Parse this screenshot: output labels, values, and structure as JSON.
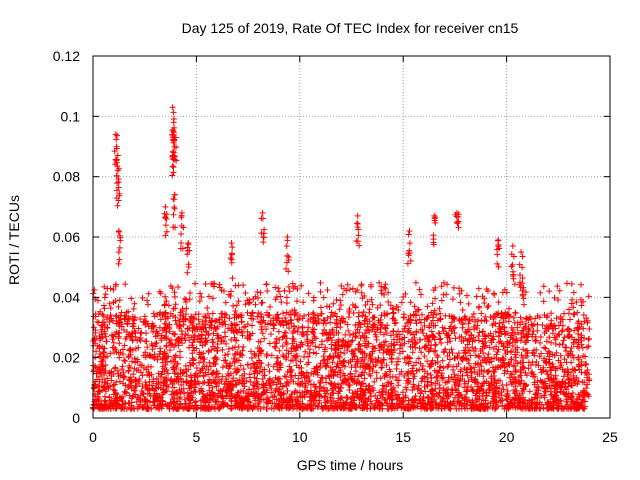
{
  "chart_data": {
    "type": "scatter",
    "title": "Day 125 of 2019, Rate Of TEC Index for receiver cn15",
    "xlabel": "GPS time / hours",
    "ylabel": "ROTI / TECUs",
    "xlim": [
      0,
      25
    ],
    "ylim": [
      0,
      0.12
    ],
    "xticks": [
      0,
      5,
      10,
      15,
      20,
      25
    ],
    "xtick_labels": [
      "0",
      "5",
      "10",
      "15",
      "20",
      "25"
    ],
    "yticks": [
      0,
      0.02,
      0.04,
      0.06,
      0.08,
      0.1,
      0.12
    ],
    "ytick_labels": [
      "0",
      "0.02",
      "0.04",
      "0.06",
      "0.08",
      "0.1",
      "0.12"
    ],
    "grid": true,
    "marker": "+",
    "color": "#ff0000",
    "series": [
      {
        "name": "ROTI",
        "x_range": [
          0,
          24
        ],
        "baseline_range": [
          0.003,
          0.035
        ],
        "peaks": [
          {
            "x": 1.1,
            "y": 0.094
          },
          {
            "x": 1.2,
            "y": 0.087
          },
          {
            "x": 1.2,
            "y": 0.082
          },
          {
            "x": 1.25,
            "y": 0.062
          },
          {
            "x": 3.85,
            "y": 0.103
          },
          {
            "x": 3.9,
            "y": 0.098
          },
          {
            "x": 3.95,
            "y": 0.093
          },
          {
            "x": 3.9,
            "y": 0.088
          },
          {
            "x": 3.95,
            "y": 0.074
          },
          {
            "x": 3.5,
            "y": 0.07
          },
          {
            "x": 4.3,
            "y": 0.068
          },
          {
            "x": 8.2,
            "y": 0.068
          },
          {
            "x": 12.8,
            "y": 0.067
          },
          {
            "x": 16.5,
            "y": 0.067
          },
          {
            "x": 17.6,
            "y": 0.068
          },
          {
            "x": 9.4,
            "y": 0.06
          },
          {
            "x": 4.6,
            "y": 0.058
          },
          {
            "x": 6.7,
            "y": 0.058
          },
          {
            "x": 15.3,
            "y": 0.062
          },
          {
            "x": 19.6,
            "y": 0.059
          },
          {
            "x": 20.3,
            "y": 0.057
          },
          {
            "x": 20.7,
            "y": 0.055
          }
        ]
      }
    ]
  }
}
